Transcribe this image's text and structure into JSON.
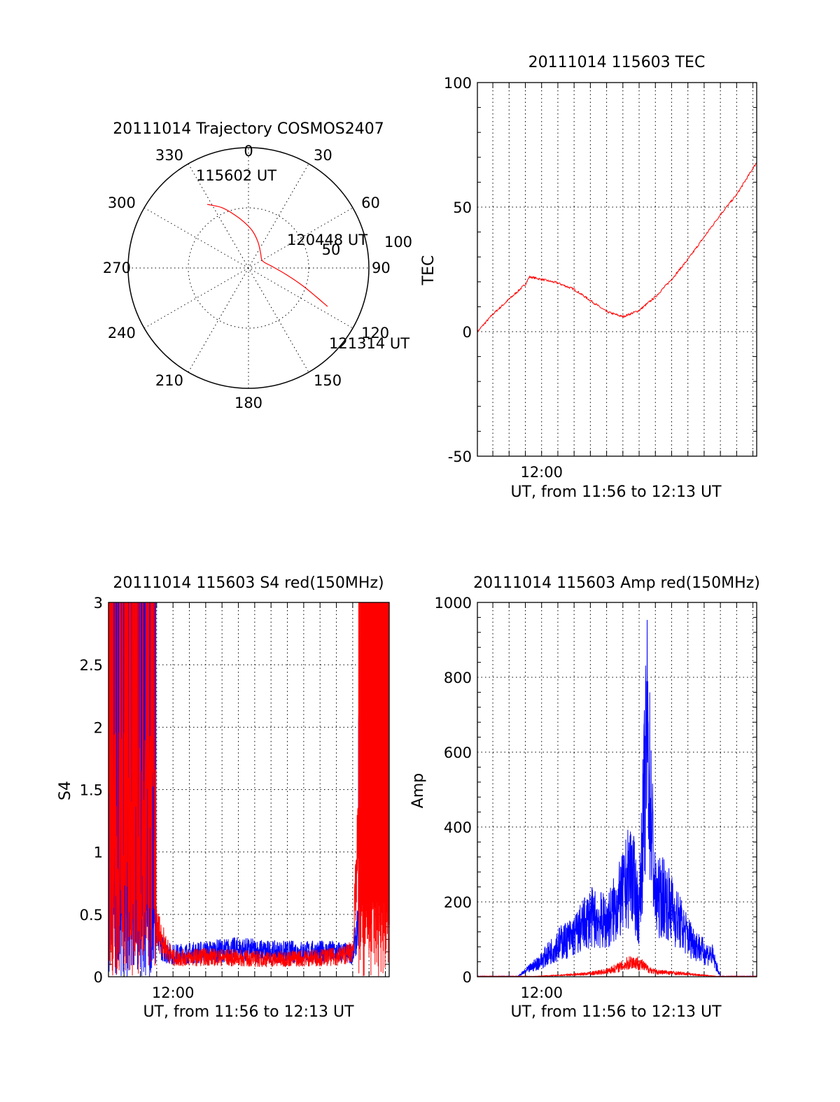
{
  "colors": {
    "red": "#ff0000",
    "blue": "#0000ff"
  },
  "chart_data": [
    {
      "type": "polar",
      "title": "20111014 Trajectory COSMOS2407",
      "angle_labels": [
        "0",
        "30",
        "60",
        "90",
        "120",
        "150",
        "180",
        "210",
        "240",
        "270",
        "300",
        "330"
      ],
      "radius_labels": [
        "50",
        "100"
      ],
      "rlim": [
        0,
        100
      ],
      "grid": true,
      "series": [
        {
          "color": "red",
          "points": [
            [
              327,
              63
            ],
            [
              336,
              55
            ],
            [
              345,
              46
            ],
            [
              355,
              38
            ],
            [
              6,
              31
            ],
            [
              20,
              23
            ],
            [
              39,
              16
            ],
            [
              63,
              13
            ],
            [
              85,
              19
            ],
            [
              100,
              32
            ],
            [
              108,
              47
            ],
            [
              113,
              61
            ],
            [
              116,
              73
            ]
          ]
        }
      ],
      "annotations": [
        "115602 UT",
        "120448 UT",
        "121314 UT"
      ]
    },
    {
      "type": "line",
      "title": "20111014 115603 TEC",
      "xlabel": "UT, from 11:56 to 12:13 UT",
      "ylabel": "TEC",
      "xlim": [
        "11:56:03",
        "12:13:14"
      ],
      "ylim": [
        -50,
        100
      ],
      "yticks": [
        "-50",
        "0",
        "50",
        "100"
      ],
      "xticks": [
        "12:00"
      ],
      "grid": true,
      "series": [
        {
          "color": "red",
          "x": [
            "11:56:03",
            "11:57:00",
            "11:58:00",
            "11:59:00",
            "11:59:15",
            "12:00:00",
            "12:01:00",
            "12:02:00",
            "12:03:00",
            "12:04:00",
            "12:05:00",
            "12:06:00",
            "12:07:00",
            "12:08:00",
            "12:09:00",
            "12:10:00",
            "12:11:00",
            "12:12:00",
            "12:13:14"
          ],
          "y": [
            0,
            7,
            13,
            19,
            22,
            21,
            19.5,
            17,
            12.5,
            8,
            6,
            8.5,
            14,
            21,
            29,
            38,
            47,
            55,
            68
          ]
        }
      ]
    },
    {
      "type": "line",
      "title": "20111014 115603 S4 red(150MHz)",
      "xlabel": "UT, from 11:56 to 12:13 UT",
      "ylabel": "S4",
      "xlim": [
        "11:56:03",
        "12:13:14"
      ],
      "ylim": [
        0,
        3
      ],
      "yticks": [
        "0",
        "0.5",
        "1",
        "1.5",
        "2",
        "2.5",
        "3"
      ],
      "xticks": [
        "12:00"
      ],
      "grid": true,
      "series": [
        {
          "color": "blue",
          "x": [
            "11:56:03",
            "11:57:00",
            "11:58:00",
            "11:58:30",
            "11:59:00",
            "11:59:30",
            "12:00:00",
            "12:02:00",
            "12:04:00",
            "12:06:00",
            "12:08:00",
            "12:10:00",
            "12:11:00",
            "12:11:30",
            "12:12:00",
            "12:13:14"
          ],
          "y": [
            1.3,
            1.3,
            1.4,
            0.6,
            0.3,
            0.2,
            0.18,
            0.2,
            0.22,
            0.2,
            0.2,
            0.2,
            0.18,
            0.5,
            1.5,
            1.8
          ]
        },
        {
          "color": "red",
          "x": [
            "11:56:03",
            "11:57:00",
            "11:58:00",
            "11:58:30",
            "11:59:00",
            "11:59:30",
            "12:00:00",
            "12:02:00",
            "12:04:00",
            "12:06:00",
            "12:08:00",
            "12:10:00",
            "12:11:00",
            "12:11:30",
            "12:12:00",
            "12:13:14"
          ],
          "y": [
            1.5,
            1.5,
            1.2,
            0.9,
            0.4,
            0.25,
            0.15,
            0.16,
            0.15,
            0.14,
            0.15,
            0.16,
            0.2,
            1.5,
            1.5,
            1.5
          ]
        }
      ]
    },
    {
      "type": "line",
      "title": "20111014 115603 Amp red(150MHz)",
      "xlabel": "UT, from 11:56 to 12:13 UT",
      "ylabel": "Amp",
      "xlim": [
        "11:56:03",
        "12:13:14"
      ],
      "ylim": [
        0,
        1000
      ],
      "yticks": [
        "0",
        "200",
        "400",
        "600",
        "800",
        "1000"
      ],
      "xticks": [
        "12:00"
      ],
      "grid": true,
      "series": [
        {
          "color": "blue",
          "x": [
            "11:56:03",
            "11:58:30",
            "11:59:00",
            "12:00:00",
            "12:01:00",
            "12:02:00",
            "12:03:00",
            "12:04:00",
            "12:05:00",
            "12:05:30",
            "12:06:00",
            "12:06:30",
            "12:07:00",
            "12:07:30",
            "12:08:00",
            "12:09:00",
            "12:10:00",
            "12:10:30",
            "12:11:00",
            "12:13:14"
          ],
          "y": [
            0,
            0,
            20,
            60,
            120,
            150,
            220,
            200,
            300,
            400,
            230,
            900,
            280,
            300,
            250,
            150,
            90,
            80,
            0,
            0
          ]
        },
        {
          "color": "red",
          "x": [
            "11:56:03",
            "11:59:00",
            "12:01:00",
            "12:03:00",
            "12:04:00",
            "12:05:00",
            "12:05:30",
            "12:06:00",
            "12:06:30",
            "12:07:00",
            "12:08:00",
            "12:09:00",
            "12:10:00",
            "12:10:30",
            "12:11:00",
            "12:13:14"
          ],
          "y": [
            0,
            0,
            5,
            12,
            20,
            40,
            55,
            50,
            30,
            18,
            15,
            10,
            5,
            3,
            0,
            0
          ]
        }
      ]
    }
  ]
}
